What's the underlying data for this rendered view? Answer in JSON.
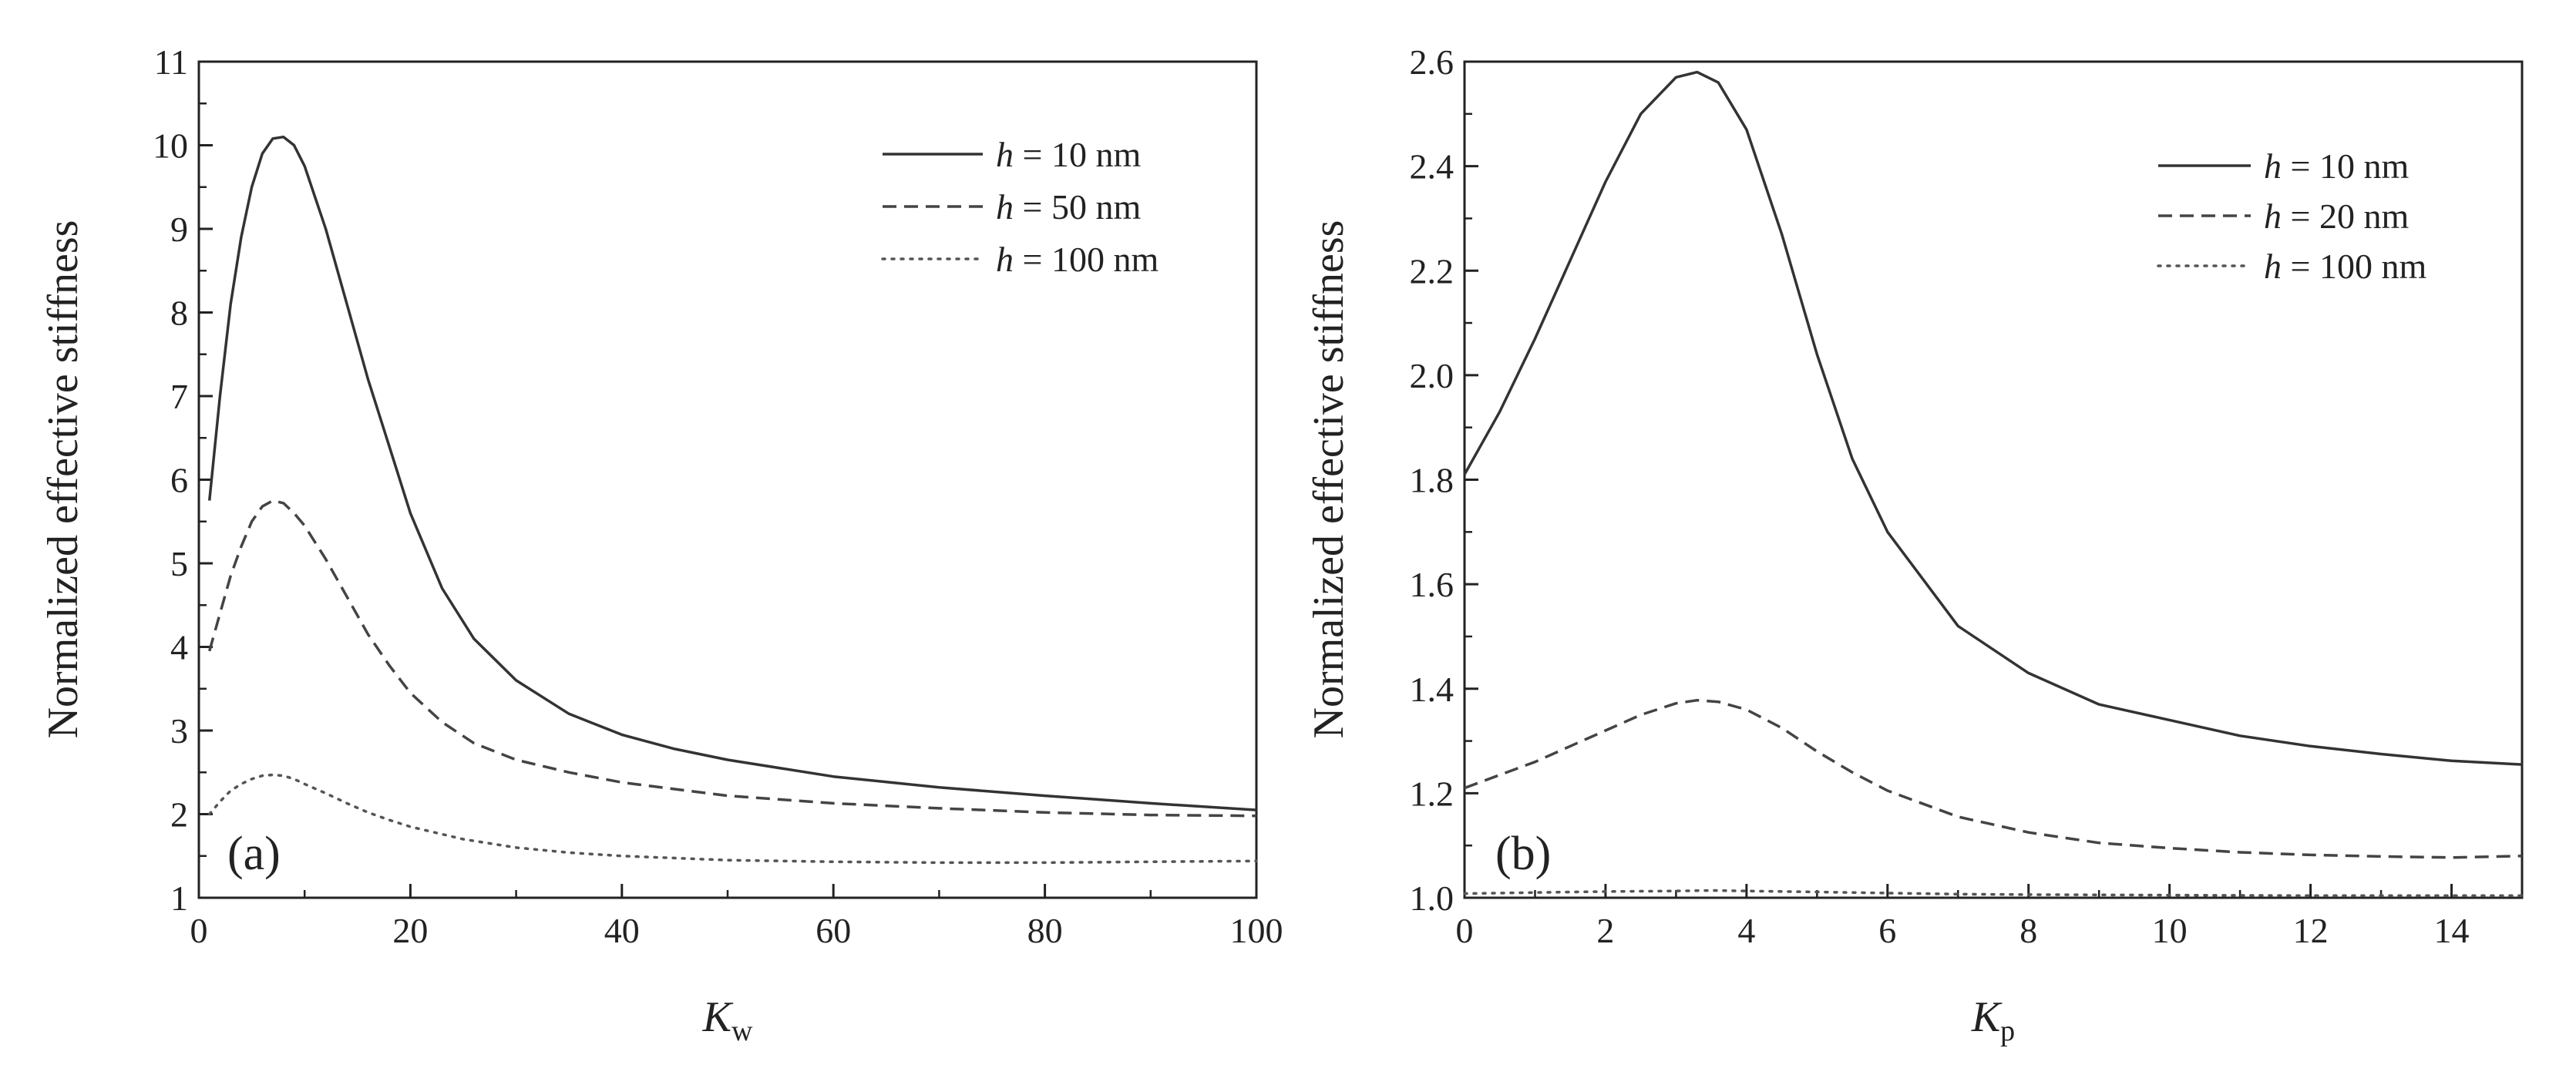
{
  "chart_data": [
    {
      "type": "line",
      "panel_label": "(a)",
      "xlabel": {
        "base": "K",
        "sub": "w"
      },
      "ylabel": "Normalized effective stiffness",
      "xlim": [
        0,
        100
      ],
      "ylim": [
        1,
        11
      ],
      "xticks": [
        0,
        20,
        40,
        60,
        80,
        100
      ],
      "xtick_labels": [
        "0",
        "20",
        "40",
        "60",
        "80",
        "100"
      ],
      "yticks": [
        1,
        2,
        3,
        4,
        5,
        6,
        7,
        8,
        9,
        10,
        11
      ],
      "ytick_labels": [
        "1",
        "2",
        "3",
        "4",
        "5",
        "6",
        "7",
        "8",
        "9",
        "10",
        "11"
      ],
      "legend": {
        "position": "top-right"
      },
      "series": [
        {
          "name": "h = 10 nm",
          "legend_var": "h",
          "legend_rest": " = 10 nm",
          "style": "solid",
          "x": [
            1,
            2,
            3,
            4,
            5,
            6,
            7,
            8,
            9,
            10,
            12,
            14,
            16,
            18,
            20,
            23,
            26,
            30,
            35,
            40,
            45,
            50,
            60,
            70,
            80,
            90,
            100
          ],
          "y": [
            5.75,
            7.0,
            8.1,
            8.9,
            9.5,
            9.9,
            10.08,
            10.1,
            10.0,
            9.75,
            9.0,
            8.1,
            7.2,
            6.4,
            5.6,
            4.7,
            4.1,
            3.6,
            3.2,
            2.95,
            2.78,
            2.65,
            2.45,
            2.32,
            2.22,
            2.13,
            2.05
          ]
        },
        {
          "name": "h = 50 nm",
          "legend_var": "h",
          "legend_rest": " = 50 nm",
          "style": "dashed",
          "x": [
            1,
            2,
            3,
            4,
            5,
            6,
            7,
            8,
            9,
            10,
            12,
            14,
            16,
            18,
            20,
            23,
            26,
            30,
            35,
            40,
            45,
            50,
            60,
            70,
            80,
            90,
            100
          ],
          "y": [
            3.95,
            4.4,
            4.85,
            5.2,
            5.5,
            5.68,
            5.75,
            5.72,
            5.6,
            5.45,
            5.05,
            4.6,
            4.15,
            3.78,
            3.45,
            3.1,
            2.85,
            2.65,
            2.5,
            2.38,
            2.3,
            2.22,
            2.13,
            2.07,
            2.02,
            1.99,
            1.98
          ]
        },
        {
          "name": "h = 100 nm",
          "legend_var": "h",
          "legend_rest": " = 100 nm",
          "style": "dotted",
          "x": [
            1,
            2,
            3,
            4,
            5,
            6,
            7,
            8,
            9,
            10,
            12,
            14,
            16,
            18,
            20,
            25,
            30,
            35,
            40,
            50,
            60,
            70,
            80,
            90,
            100
          ],
          "y": [
            2.0,
            2.15,
            2.28,
            2.36,
            2.42,
            2.46,
            2.47,
            2.46,
            2.42,
            2.36,
            2.25,
            2.13,
            2.02,
            1.93,
            1.85,
            1.7,
            1.6,
            1.54,
            1.5,
            1.45,
            1.43,
            1.42,
            1.42,
            1.43,
            1.44
          ]
        }
      ]
    },
    {
      "type": "line",
      "panel_label": "(b)",
      "xlabel": {
        "base": "K",
        "sub": "p"
      },
      "ylabel": "Normalized effective stiffness",
      "xlim": [
        0,
        15
      ],
      "ylim": [
        1.0,
        2.6
      ],
      "xticks": [
        0,
        2,
        4,
        6,
        8,
        10,
        12,
        14
      ],
      "xtick_labels": [
        "0",
        "2",
        "4",
        "6",
        "8",
        "10",
        "12",
        "14"
      ],
      "yticks": [
        1.0,
        1.2,
        1.4,
        1.6,
        1.8,
        2.0,
        2.2,
        2.4,
        2.6
      ],
      "ytick_labels": [
        "1.0",
        "1.2",
        "1.4",
        "1.6",
        "1.8",
        "2.0",
        "2.2",
        "2.4",
        "2.6"
      ],
      "legend": {
        "position": "top-right"
      },
      "series": [
        {
          "name": "h = 10 nm",
          "legend_var": "h",
          "legend_rest": " = 10 nm",
          "style": "solid",
          "x": [
            0,
            0.5,
            1,
            1.5,
            2,
            2.5,
            3,
            3.3,
            3.6,
            4,
            4.5,
            5,
            5.5,
            6,
            7,
            8,
            9,
            10,
            11,
            12,
            13,
            14,
            15
          ],
          "y": [
            1.81,
            1.93,
            2.07,
            2.22,
            2.37,
            2.5,
            2.57,
            2.58,
            2.56,
            2.47,
            2.27,
            2.04,
            1.84,
            1.7,
            1.52,
            1.43,
            1.37,
            1.34,
            1.31,
            1.29,
            1.275,
            1.262,
            1.255
          ]
        },
        {
          "name": "h = 20 nm",
          "legend_var": "h",
          "legend_rest": " = 20 nm",
          "style": "dashed",
          "x": [
            0,
            0.5,
            1,
            1.5,
            2,
            2.5,
            3,
            3.3,
            3.6,
            4,
            4.5,
            5,
            5.5,
            6,
            7,
            8,
            9,
            10,
            11,
            12,
            13,
            14,
            15
          ],
          "y": [
            1.21,
            1.235,
            1.26,
            1.29,
            1.32,
            1.35,
            1.372,
            1.378,
            1.375,
            1.36,
            1.325,
            1.28,
            1.24,
            1.205,
            1.155,
            1.125,
            1.105,
            1.095,
            1.087,
            1.082,
            1.079,
            1.077,
            1.08
          ]
        },
        {
          "name": "h = 100 nm",
          "legend_var": "h",
          "legend_rest": " = 100 nm",
          "style": "dotted",
          "x": [
            0,
            1,
            2,
            3,
            3.5,
            4,
            5,
            6,
            7,
            8,
            10,
            12,
            15
          ],
          "y": [
            1.008,
            1.01,
            1.012,
            1.013,
            1.014,
            1.013,
            1.011,
            1.009,
            1.007,
            1.006,
            1.005,
            1.004,
            1.004
          ]
        }
      ]
    }
  ]
}
